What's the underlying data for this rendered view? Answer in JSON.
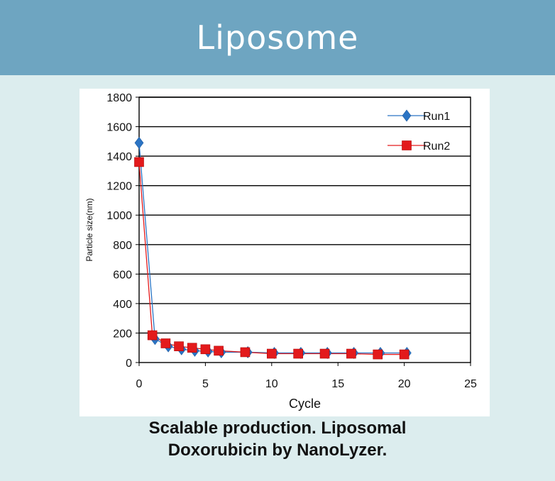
{
  "header": {
    "title": "Liposome"
  },
  "caption": {
    "line1": "Scalable production.  Liposomal",
    "line2": "Doxorubicin by NanoLyzer."
  },
  "chart_data": {
    "type": "line",
    "xlabel": "Cycle",
    "ylabel": "Particle size(nm)",
    "xlim": [
      0,
      25
    ],
    "ylim": [
      0,
      1800
    ],
    "xticks": [
      0,
      5,
      10,
      15,
      20,
      25
    ],
    "yticks": [
      0,
      200,
      400,
      600,
      800,
      1000,
      1200,
      1400,
      1600,
      1800
    ],
    "grid": "horizontal",
    "legend": "top-right",
    "series": [
      {
        "name": "Run1",
        "color": "#2b74c4",
        "marker": "diamond",
        "x": [
          0,
          1.2,
          2.2,
          3.2,
          4.2,
          5.2,
          6.2,
          8.2,
          10.2,
          12.2,
          14.2,
          16.2,
          18.2,
          20.2
        ],
        "y": [
          1490,
          160,
          110,
          90,
          80,
          75,
          70,
          70,
          65,
          65,
          65,
          65,
          65,
          65
        ]
      },
      {
        "name": "Run2",
        "color": "#e31a1c",
        "marker": "square",
        "x": [
          0,
          1,
          2,
          3,
          4,
          5,
          6,
          8,
          10,
          12,
          14,
          16,
          18,
          20
        ],
        "y": [
          1360,
          185,
          130,
          110,
          100,
          90,
          80,
          70,
          60,
          60,
          60,
          60,
          55,
          55
        ]
      }
    ]
  }
}
